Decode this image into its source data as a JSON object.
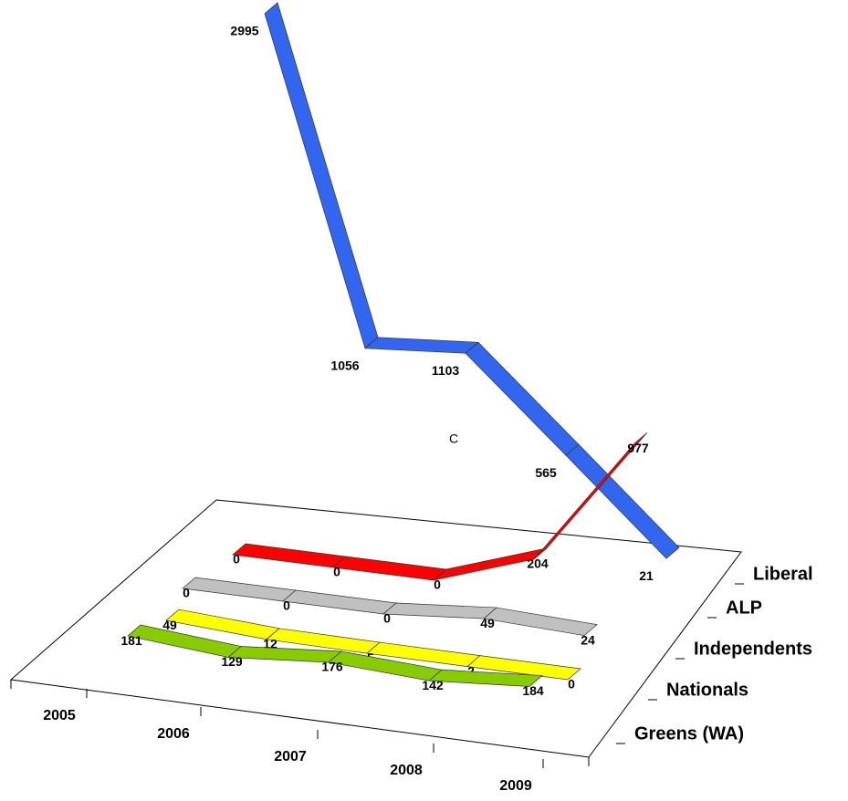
{
  "chart_data": {
    "type": "ribbon",
    "annotation": "C",
    "categories": [
      "2005",
      "2006",
      "2007",
      "2008",
      "2009"
    ],
    "series": [
      {
        "name": "Liberal",
        "color": "#3366ee",
        "values": [
          2995,
          1056,
          1103,
          565,
          21
        ]
      },
      {
        "name": "ALP",
        "color": "#ff0000",
        "values": [
          0,
          0,
          0,
          204,
          977
        ]
      },
      {
        "name": "Independents",
        "color": "#c0c0c0",
        "values": [
          0,
          0,
          0,
          49,
          24
        ]
      },
      {
        "name": "Nationals",
        "color": "#ffff00",
        "values": [
          49,
          12,
          5,
          2,
          0
        ]
      },
      {
        "name": "Greens (WA)",
        "color": "#88cc00",
        "values": [
          181,
          129,
          176,
          142,
          184
        ]
      }
    ]
  }
}
